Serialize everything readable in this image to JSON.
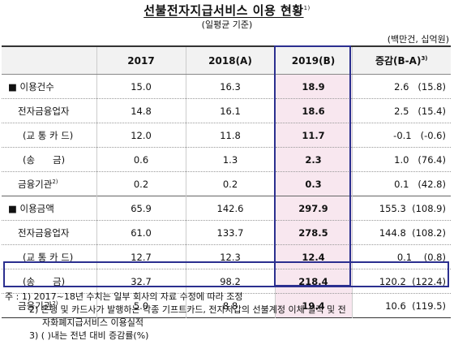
{
  "title": "선불전자지급서비스 이용 현황",
  "title_note": "1)",
  "subtitle": "(일평균 기준)",
  "unit": "(백만건, 십억원)",
  "headers": [
    "",
    "2017",
    "2018(A)",
    "2019(B)",
    "증감(B-A)",
    "3)"
  ],
  "rows": [
    {
      "label": "■ 이용건수",
      "sup": "",
      "v2017": "15.0",
      "v2018": "16.3",
      "v2019": "18.9",
      "inc": "2.6   (15.8)"
    },
    {
      "label": "전자금융업자",
      "sup": "",
      "v2017": "14.8",
      "v2018": "16.1",
      "v2019": "18.6",
      "inc": "2.5   (15.4)"
    },
    {
      "label": "(교 통 카 드)",
      "sup": "",
      "v2017": "12.0",
      "v2018": "11.8",
      "v2019": "11.7",
      "inc": "-0.1   (-0.6)"
    },
    {
      "label": "(송      금)",
      "sup": "",
      "v2017": "0.6",
      "v2018": "1.3",
      "v2019": "2.3",
      "inc": "1.0   (76.4)"
    },
    {
      "label": "금융기관",
      "sup": "2)",
      "v2017": "0.2",
      "v2018": "0.2",
      "v2019": "0.3",
      "inc": "0.1   (42.8)"
    },
    {
      "label": "■ 이용금액",
      "sup": "",
      "v2017": "65.9",
      "v2018": "142.6",
      "v2019": "297.9",
      "inc": "155.3  (108.9)"
    },
    {
      "label": "전자금융업자",
      "sup": "",
      "v2017": "61.0",
      "v2018": "133.7",
      "v2019": "278.5",
      "inc": "144.8  (108.2)"
    },
    {
      "label": "(교 통 카 드)",
      "sup": "",
      "v2017": "12.7",
      "v2018": "12.3",
      "v2019": "12.4",
      "inc": "0.1    (0.8)"
    },
    {
      "label": "(송      금)",
      "sup": "",
      "v2017": "32.7",
      "v2018": "98.2",
      "v2019": "218.4",
      "inc": "120.2  (122.4)"
    },
    {
      "label": "금융기관",
      "sup": "2)",
      "v2017": "5.0",
      "v2018": "8.8",
      "v2019": "19.4",
      "inc": "10.6  (119.5)"
    }
  ],
  "notes": [
    "주 : 1)  2017~18년 수치는 일부 회사의 자료 수정에 따라 조정",
    "2) 은행 및 카드사가 발행하는 각종 기프트카드, 전자지갑의 선불계정 이체 실적 및 전",
    "자화폐지급서비스 이용실적",
    "3)  (  )내는 전년 대비 증감률(%)"
  ]
}
